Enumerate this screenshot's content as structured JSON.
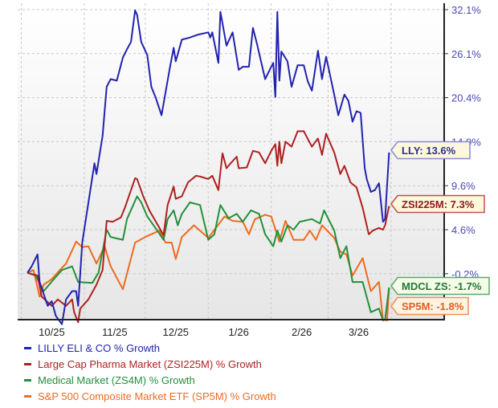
{
  "chart_data": {
    "type": "line",
    "title": "",
    "xlabel": "",
    "ylabel": "",
    "x_tick_labels": [
      "10/25",
      "11/25",
      "12/25",
      "1/26",
      "2/26",
      "3/26"
    ],
    "y_tick_labels": [
      "32.1%",
      "26.1%",
      "20.4%",
      "14.9%",
      "9.6%",
      "4.6%",
      "-0.2%"
    ],
    "y_ticks": [
      32.1,
      26.1,
      20.4,
      14.9,
      9.6,
      4.6,
      -0.2
    ],
    "ylim": [
      -6,
      32.5
    ],
    "xlim": [
      "2025-10-01",
      "2026-04-01"
    ],
    "grid": true,
    "y_axis_side": "right",
    "legend_placement": "bottom",
    "series": [
      {
        "name": "LILLY ELI & CO % Growth",
        "tag": "LLY: 13.6%",
        "color": "#2222b0",
        "label_bg": "#fdf8dc",
        "label_border": "#8a8ad0",
        "label_text": "#2e2e90",
        "points": [
          [
            "2025-10-04",
            -0.1
          ],
          [
            "2025-10-06",
            0.55
          ],
          [
            "2025-10-09",
            1.9
          ],
          [
            "2025-10-10",
            -1.1
          ],
          [
            "2025-10-14",
            -3.7
          ],
          [
            "2025-10-16",
            -3.2
          ],
          [
            "2025-10-18",
            -4.8
          ],
          [
            "2025-10-21",
            -5.7
          ],
          [
            "2025-10-23",
            -3.0
          ],
          [
            "2025-10-26",
            -2.1
          ],
          [
            "2025-10-28",
            -2.1
          ],
          [
            "2025-10-29",
            -3.7
          ],
          [
            "2025-10-31",
            3.2
          ],
          [
            "2025-11-06",
            12.3
          ],
          [
            "2025-11-07",
            11.0
          ],
          [
            "2025-11-10",
            15.6
          ],
          [
            "2025-11-12",
            21.8
          ],
          [
            "2025-11-14",
            22.8
          ],
          [
            "2025-11-17",
            22.6
          ],
          [
            "2025-11-20",
            25.6
          ],
          [
            "2025-11-22",
            26.7
          ],
          [
            "2025-11-24",
            27.7
          ],
          [
            "2025-11-26",
            32.0
          ],
          [
            "2025-11-27",
            31.4
          ],
          [
            "2025-11-29",
            27.7
          ],
          [
            "2025-12-02",
            25.9
          ],
          [
            "2025-12-04",
            21.8
          ],
          [
            "2025-12-06",
            20.5
          ],
          [
            "2025-12-09",
            18.2
          ],
          [
            "2025-12-13",
            24.1
          ],
          [
            "2025-12-15",
            26.9
          ],
          [
            "2025-12-16",
            25.1
          ],
          [
            "2025-12-19",
            28.0
          ],
          [
            "2025-12-23",
            28.3
          ],
          [
            "2025-12-27",
            28.7
          ],
          [
            "2026-01-01",
            29.0
          ],
          [
            "2026-01-02",
            28.3
          ],
          [
            "2026-01-03",
            29.0
          ],
          [
            "2026-01-06",
            24.9
          ],
          [
            "2026-01-07",
            31.8
          ],
          [
            "2026-01-10",
            27.2
          ],
          [
            "2026-01-13",
            29.0
          ],
          [
            "2026-01-16",
            24.0
          ],
          [
            "2026-01-18",
            24.4
          ],
          [
            "2026-01-21",
            24.4
          ],
          [
            "2026-01-23",
            29.6
          ],
          [
            "2026-01-25",
            27.4
          ],
          [
            "2026-01-29",
            22.8
          ],
          [
            "2026-02-01",
            24.4
          ],
          [
            "2026-02-02",
            24.9
          ],
          [
            "2026-02-03",
            20.5
          ],
          [
            "2026-02-04",
            31.8
          ],
          [
            "2026-02-05",
            22.6
          ],
          [
            "2026-02-06",
            26.4
          ],
          [
            "2026-02-09",
            25.1
          ],
          [
            "2026-02-11",
            21.8
          ],
          [
            "2026-02-14",
            24.6
          ],
          [
            "2026-02-17",
            24.6
          ],
          [
            "2026-02-19",
            22.5
          ],
          [
            "2026-02-21",
            21.3
          ],
          [
            "2026-02-24",
            26.5
          ],
          [
            "2026-02-26",
            22.8
          ],
          [
            "2026-02-28",
            25.7
          ],
          [
            "2026-03-04",
            20.8
          ],
          [
            "2026-03-06",
            18.2
          ],
          [
            "2026-03-09",
            20.8
          ],
          [
            "2026-03-11",
            20.0
          ],
          [
            "2026-03-13",
            17.4
          ],
          [
            "2026-03-15",
            18.7
          ],
          [
            "2026-03-17",
            18.5
          ],
          [
            "2026-03-19",
            11.7
          ],
          [
            "2026-03-20",
            10.4
          ],
          [
            "2026-03-22",
            8.9
          ],
          [
            "2026-03-24",
            9.1
          ],
          [
            "2026-03-26",
            9.9
          ],
          [
            "2026-03-28",
            5.5
          ],
          [
            "2026-03-29",
            5.8
          ],
          [
            "2026-03-31",
            13.6
          ]
        ]
      },
      {
        "name": "Large Cap Pharma Market (ZSI225M) % Growth",
        "tag": "ZSI225M: 7.3%",
        "color": "#b02020",
        "label_bg": "#fdf8dc",
        "label_border": "#c05050",
        "label_text": "#8a1a1a",
        "points": [
          [
            "2025-10-04",
            -0.1
          ],
          [
            "2025-10-09",
            -0.4
          ],
          [
            "2025-10-11",
            -2.7
          ],
          [
            "2025-10-16",
            -3.7
          ],
          [
            "2025-10-19",
            -3.0
          ],
          [
            "2025-10-23",
            -3.7
          ],
          [
            "2025-10-26",
            -3.0
          ],
          [
            "2025-10-27",
            -4.4
          ],
          [
            "2025-10-29",
            -5.5
          ],
          [
            "2025-10-30",
            -4.0
          ],
          [
            "2025-11-03",
            -3.0
          ],
          [
            "2025-11-07",
            -1.4
          ],
          [
            "2025-11-10",
            0.2
          ],
          [
            "2025-11-12",
            5.6
          ],
          [
            "2025-11-15",
            5.5
          ],
          [
            "2025-11-19",
            6.0
          ],
          [
            "2025-11-21",
            7.1
          ],
          [
            "2025-11-26",
            10.5
          ],
          [
            "2025-11-27",
            10.4
          ],
          [
            "2025-11-30",
            8.4
          ],
          [
            "2025-12-03",
            6.8
          ],
          [
            "2025-12-08",
            4.8
          ],
          [
            "2025-12-10",
            4.0
          ],
          [
            "2025-12-12",
            7.4
          ],
          [
            "2025-12-15",
            9.5
          ],
          [
            "2025-12-16",
            8.1
          ],
          [
            "2025-12-19",
            8.4
          ],
          [
            "2025-12-22",
            10.0
          ],
          [
            "2025-12-26",
            10.8
          ],
          [
            "2025-12-28",
            10.7
          ],
          [
            "2026-01-01",
            10.4
          ],
          [
            "2026-01-03",
            10.8
          ],
          [
            "2026-01-06",
            9.1
          ],
          [
            "2026-01-08",
            13.5
          ],
          [
            "2026-01-10",
            11.7
          ],
          [
            "2026-01-12",
            12.3
          ],
          [
            "2026-01-15",
            13.1
          ],
          [
            "2026-01-16",
            11.7
          ],
          [
            "2026-01-20",
            11.8
          ],
          [
            "2026-01-23",
            13.8
          ],
          [
            "2026-01-26",
            13.6
          ],
          [
            "2026-01-29",
            12.3
          ],
          [
            "2026-02-01",
            13.8
          ],
          [
            "2026-02-03",
            14.6
          ],
          [
            "2026-02-04",
            12.0
          ],
          [
            "2026-02-05",
            14.9
          ],
          [
            "2026-02-06",
            12.3
          ],
          [
            "2026-02-08",
            14.9
          ],
          [
            "2026-02-11",
            14.3
          ],
          [
            "2026-02-14",
            16.2
          ],
          [
            "2026-02-17",
            16.2
          ],
          [
            "2026-02-21",
            14.3
          ],
          [
            "2026-02-24",
            15.3
          ],
          [
            "2026-02-26",
            13.3
          ],
          [
            "2026-02-28",
            15.9
          ],
          [
            "2026-03-04",
            13.6
          ],
          [
            "2026-03-07",
            11.0
          ],
          [
            "2026-03-09",
            12.0
          ],
          [
            "2026-03-12",
            10.0
          ],
          [
            "2026-03-15",
            9.4
          ],
          [
            "2026-03-18",
            7.1
          ],
          [
            "2026-03-21",
            4.1
          ],
          [
            "2026-03-23",
            4.5
          ],
          [
            "2026-03-26",
            4.8
          ],
          [
            "2026-03-28",
            4.6
          ],
          [
            "2026-03-29",
            5.1
          ],
          [
            "2026-03-31",
            7.3
          ]
        ]
      },
      {
        "name": "Medical Market (ZS4M) % Growth",
        "tag": "MDCL ZS: -1.7%",
        "color": "#22903a",
        "label_bg": "#f4fbe8",
        "label_border": "#5aa86a",
        "label_text": "#1f7a35",
        "points": [
          [
            "2025-10-04",
            -0.1
          ],
          [
            "2025-10-08",
            -0.4
          ],
          [
            "2025-10-12",
            -2.1
          ],
          [
            "2025-10-17",
            -0.8
          ],
          [
            "2025-10-21",
            0.2
          ],
          [
            "2025-10-26",
            0.6
          ],
          [
            "2025-10-29",
            -1.1
          ],
          [
            "2025-11-05",
            -1.2
          ],
          [
            "2025-11-08",
            -0.1
          ],
          [
            "2025-11-12",
            4.6
          ],
          [
            "2025-11-14",
            3.8
          ],
          [
            "2025-11-20",
            3.5
          ],
          [
            "2025-11-22",
            5.8
          ],
          [
            "2025-11-27",
            8.4
          ],
          [
            "2025-11-29",
            7.7
          ],
          [
            "2025-12-02",
            6.1
          ],
          [
            "2025-12-06",
            4.8
          ],
          [
            "2025-12-10",
            3.5
          ],
          [
            "2025-12-12",
            5.8
          ],
          [
            "2025-12-15",
            6.8
          ],
          [
            "2025-12-17",
            5.1
          ],
          [
            "2025-12-19",
            6.4
          ],
          [
            "2025-12-23",
            7.7
          ],
          [
            "2025-12-28",
            7.4
          ],
          [
            "2026-01-01",
            3.5
          ],
          [
            "2026-01-04",
            4.1
          ],
          [
            "2026-01-07",
            7.4
          ],
          [
            "2026-01-11",
            5.9
          ],
          [
            "2026-01-15",
            6.4
          ],
          [
            "2026-01-18",
            5.5
          ],
          [
            "2026-01-22",
            6.8
          ],
          [
            "2026-01-26",
            6.4
          ],
          [
            "2026-01-29",
            4.1
          ],
          [
            "2026-02-02",
            2.8
          ],
          [
            "2026-02-04",
            4.5
          ],
          [
            "2026-02-06",
            3.3
          ],
          [
            "2026-02-09",
            5.1
          ],
          [
            "2026-02-12",
            4.6
          ],
          [
            "2026-02-15",
            5.5
          ],
          [
            "2026-02-21",
            5.8
          ],
          [
            "2026-02-25",
            5.3
          ],
          [
            "2026-02-27",
            6.8
          ],
          [
            "2026-03-04",
            4.5
          ],
          [
            "2026-03-07",
            1.5
          ],
          [
            "2026-03-10",
            2.8
          ],
          [
            "2026-03-13",
            -1.1
          ],
          [
            "2026-03-18",
            -1.1
          ],
          [
            "2026-03-22",
            -4.4
          ],
          [
            "2026-03-26",
            -4.0
          ],
          [
            "2026-03-28",
            -5.3
          ],
          [
            "2026-03-29",
            -5.2
          ],
          [
            "2026-03-31",
            -1.7
          ]
        ]
      },
      {
        "name": "S&P 500 Composite Market ETF (SP5M) % Growth",
        "tag": "SP5M: -1.8%",
        "color": "#f06a1e",
        "label_bg": "#fdf3e4",
        "label_border": "#f09050",
        "label_text": "#e0601a",
        "points": [
          [
            "2025-10-04",
            -0.1
          ],
          [
            "2025-10-07",
            0.2
          ],
          [
            "2025-10-10",
            -2.7
          ],
          [
            "2025-10-12",
            -1.4
          ],
          [
            "2025-10-16",
            -0.8
          ],
          [
            "2025-10-20",
            0.2
          ],
          [
            "2025-10-23",
            0.9
          ],
          [
            "2025-10-28",
            3.3
          ],
          [
            "2025-10-31",
            2.7
          ],
          [
            "2025-11-03",
            2.8
          ],
          [
            "2025-11-07",
            0.9
          ],
          [
            "2025-11-11",
            2.8
          ],
          [
            "2025-11-14",
            0.6
          ],
          [
            "2025-11-20",
            -1.9
          ],
          [
            "2025-11-26",
            3.2
          ],
          [
            "2025-12-01",
            3.8
          ],
          [
            "2025-12-04",
            4.1
          ],
          [
            "2025-12-08",
            4.5
          ],
          [
            "2025-12-11",
            3.2
          ],
          [
            "2025-12-14",
            3.2
          ],
          [
            "2025-12-16",
            1.4
          ],
          [
            "2025-12-19",
            3.8
          ],
          [
            "2025-12-25",
            5.1
          ],
          [
            "2026-01-01",
            3.7
          ],
          [
            "2026-01-09",
            6.1
          ],
          [
            "2026-01-13",
            5.6
          ],
          [
            "2026-01-18",
            5.5
          ],
          [
            "2026-01-21",
            4.1
          ],
          [
            "2026-01-24",
            5.8
          ],
          [
            "2026-01-29",
            6.3
          ],
          [
            "2026-02-01",
            6.1
          ],
          [
            "2026-02-05",
            3.3
          ],
          [
            "2026-02-08",
            5.6
          ],
          [
            "2026-02-12",
            3.5
          ],
          [
            "2026-02-17",
            3.5
          ],
          [
            "2026-02-20",
            4.5
          ],
          [
            "2026-02-23",
            3.5
          ],
          [
            "2026-02-26",
            5.1
          ],
          [
            "2026-03-04",
            3.7
          ],
          [
            "2026-03-07",
            2.2
          ],
          [
            "2026-03-10",
            1.9
          ],
          [
            "2026-03-13",
            -0.4
          ],
          [
            "2026-03-18",
            1.5
          ],
          [
            "2026-03-22",
            -2.1
          ],
          [
            "2026-03-26",
            -1.1
          ],
          [
            "2026-03-28",
            -5.2
          ],
          [
            "2026-03-30",
            -5.3
          ],
          [
            "2026-03-31",
            -1.8
          ]
        ]
      }
    ]
  }
}
